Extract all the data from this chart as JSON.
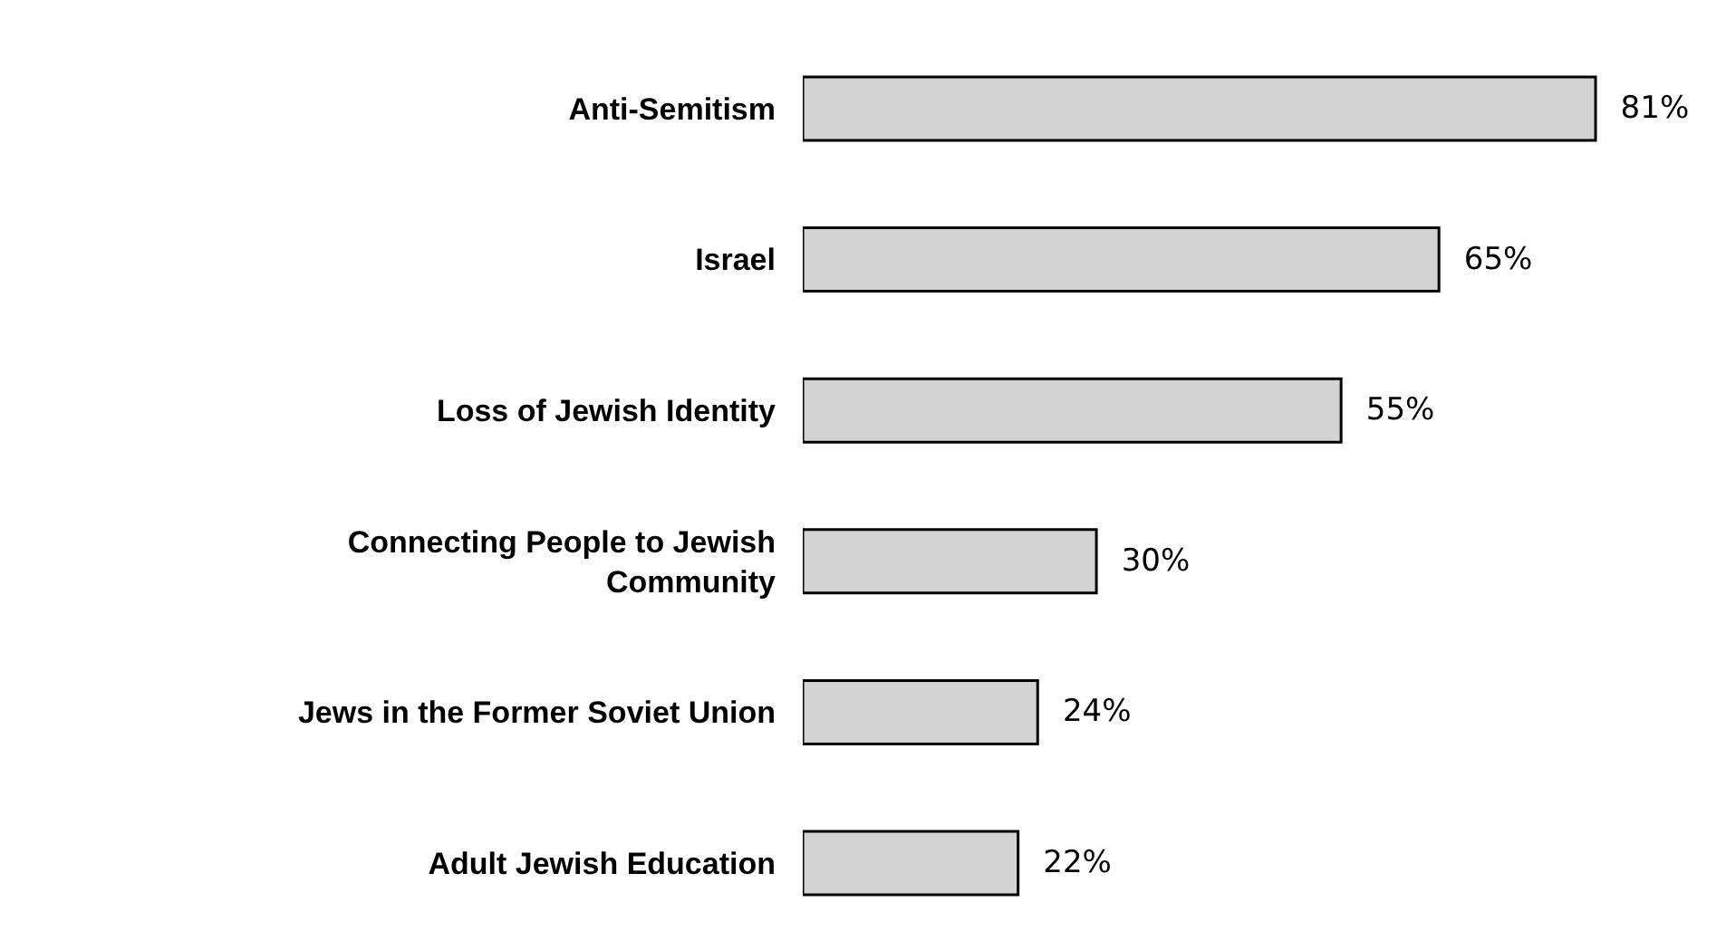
{
  "chart_data": {
    "type": "bar",
    "orientation": "horizontal",
    "categories": [
      "Anti-Semitism",
      "Israel",
      "Loss of Jewish Identity",
      "Connecting People to Jewish Community",
      "Jews in the Former Soviet Union",
      "Adult Jewish Education"
    ],
    "values": [
      81,
      65,
      55,
      30,
      24,
      22
    ],
    "value_labels": [
      "81%",
      "65%",
      "55%",
      "30%",
      "24%",
      "22%"
    ],
    "color": "#d3d3d3"
  }
}
